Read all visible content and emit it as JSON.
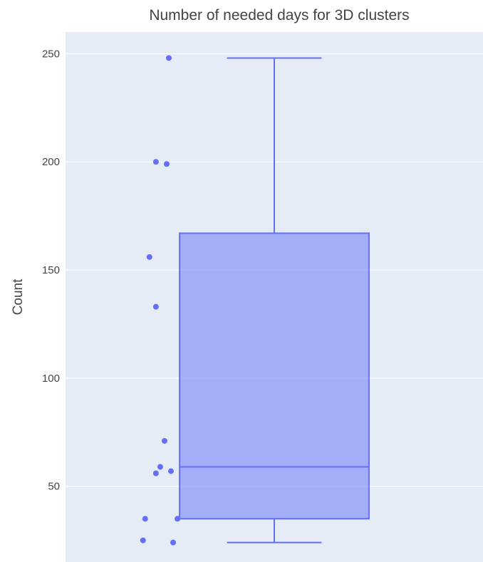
{
  "chart_data": {
    "type": "box",
    "title": "Number of needed days for 3D clusters",
    "xlabel": "",
    "ylabel": "Count",
    "ylim": [
      15,
      260
    ],
    "yticks": [
      50,
      100,
      150,
      200,
      250
    ],
    "grid": true,
    "legend": "none",
    "box": {
      "min": 24,
      "q1": 35,
      "median": 59,
      "q3": 167,
      "max": 248
    },
    "points": [
      {
        "x": -0.49,
        "y": 248
      },
      {
        "x": -0.55,
        "y": 200
      },
      {
        "x": -0.5,
        "y": 199
      },
      {
        "x": -0.58,
        "y": 156
      },
      {
        "x": -0.55,
        "y": 133
      },
      {
        "x": -0.51,
        "y": 71
      },
      {
        "x": -0.53,
        "y": 59
      },
      {
        "x": -0.55,
        "y": 56
      },
      {
        "x": -0.48,
        "y": 57
      },
      {
        "x": -0.6,
        "y": 35
      },
      {
        "x": -0.45,
        "y": 35
      },
      {
        "x": -0.61,
        "y": 25
      },
      {
        "x": -0.47,
        "y": 24
      }
    ],
    "colors": {
      "marker": "#636efa",
      "box_fill": "rgba(99,110,250,0.5)",
      "plot_bg": "#e5ecf6",
      "grid": "#ffffff"
    }
  }
}
